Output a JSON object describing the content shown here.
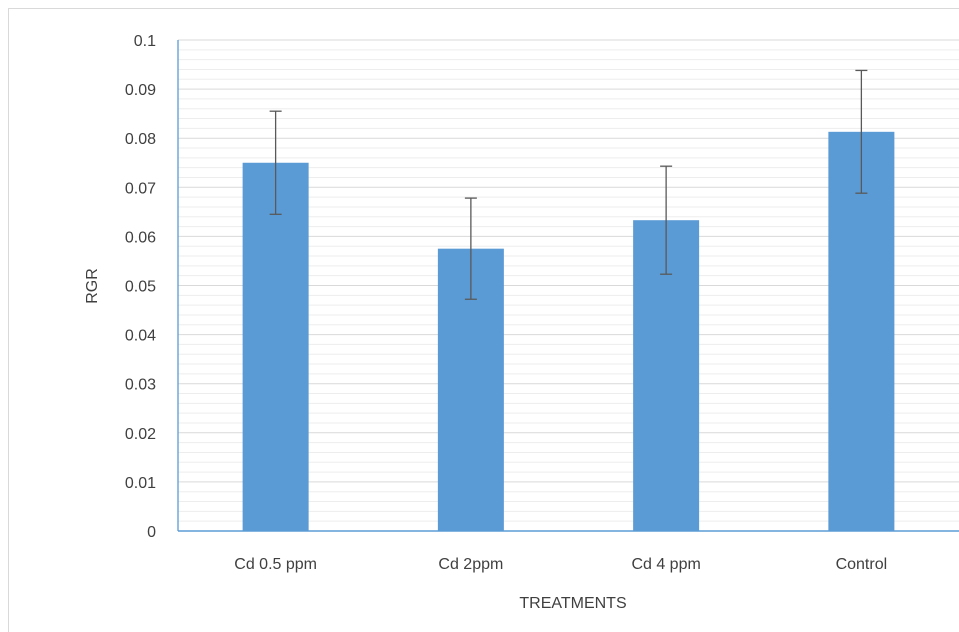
{
  "chart_data": {
    "type": "bar",
    "title": "",
    "xlabel": "TREATMENTS",
    "ylabel": "RGR",
    "categories": [
      "Cd 0.5 ppm",
      "Cd 2ppm",
      "Cd 4 ppm",
      "Control"
    ],
    "series": [
      {
        "values": [
          0.075,
          0.0575,
          0.0633,
          0.0813
        ],
        "error": [
          0.0105,
          0.0103,
          0.011,
          0.0125
        ]
      }
    ],
    "ylim": [
      0,
      0.1
    ],
    "yticks": [
      "0",
      "0.01",
      "0.02",
      "0.03",
      "0.04",
      "0.05",
      "0.06",
      "0.07",
      "0.08",
      "0.09",
      "0.1"
    ],
    "minor_gridlines": true,
    "legend": "none",
    "colors": {
      "bar": "#5b9bd5",
      "error_bar": "#595959",
      "major_grid": "#d9d9d9",
      "minor_grid": "#ededed",
      "axis": "#5b9bd5",
      "text": "#404040"
    }
  }
}
